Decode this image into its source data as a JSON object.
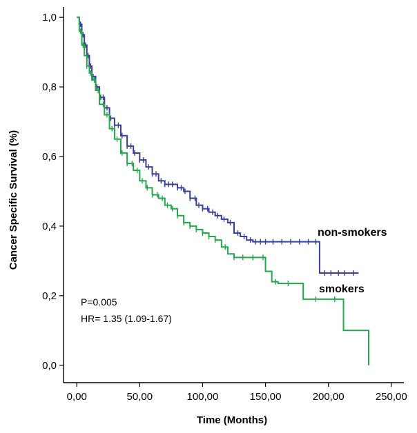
{
  "chart_data": {
    "type": "line",
    "step": true,
    "xlabel": "Time (Months)",
    "ylabel": "Cancer Specific Survival (%)",
    "xlim": [
      -10,
      260
    ],
    "ylim": [
      -0.05,
      1.03
    ],
    "xticks": [
      0,
      50,
      100,
      150,
      200,
      250
    ],
    "xtick_labels": [
      "0,00",
      "50,00",
      "100,00",
      "150,00",
      "200,00",
      "250,00"
    ],
    "yticks": [
      0,
      0.2,
      0.4,
      0.6,
      0.8,
      1.0
    ],
    "ytick_labels": [
      "0,0",
      "0,2",
      "0,4",
      "0,6",
      "0,8",
      "1,0"
    ],
    "annotations": [
      "P=0.005",
      "HR= 1.35 (1.09-1.67)"
    ],
    "series": [
      {
        "name": "non-smokers",
        "color": "#3a3f9a",
        "x": [
          0,
          2,
          4,
          6,
          8,
          10,
          12,
          15,
          18,
          22,
          26,
          30,
          35,
          40,
          45,
          50,
          55,
          60,
          65,
          70,
          75,
          80,
          85,
          90,
          95,
          100,
          105,
          110,
          115,
          120,
          125,
          130,
          135,
          140,
          150,
          160,
          170,
          180,
          190,
          193,
          200,
          210,
          224
        ],
        "y": [
          1.0,
          0.98,
          0.95,
          0.92,
          0.89,
          0.86,
          0.83,
          0.8,
          0.77,
          0.74,
          0.71,
          0.69,
          0.66,
          0.63,
          0.61,
          0.59,
          0.57,
          0.55,
          0.53,
          0.52,
          0.52,
          0.51,
          0.5,
          0.48,
          0.46,
          0.45,
          0.44,
          0.43,
          0.42,
          0.41,
          0.38,
          0.37,
          0.36,
          0.355,
          0.355,
          0.355,
          0.355,
          0.355,
          0.355,
          0.265,
          0.265,
          0.265,
          0.265
        ],
        "censor_x": [
          3,
          5,
          7,
          9,
          11,
          13,
          16,
          19,
          21,
          24,
          27,
          30,
          33,
          36,
          40,
          43,
          46,
          50,
          53,
          57,
          60,
          63,
          67,
          70,
          73,
          76,
          80,
          83,
          86,
          90,
          94,
          97,
          100,
          104,
          108,
          112,
          117,
          122,
          128,
          133,
          138,
          142,
          146,
          150,
          156,
          163,
          170,
          177,
          184,
          190,
          197,
          202,
          208,
          213,
          220
        ]
      },
      {
        "name": "smokers",
        "color": "#22a84a",
        "x": [
          0,
          2,
          4,
          6,
          8,
          10,
          12,
          15,
          18,
          22,
          26,
          30,
          35,
          40,
          45,
          50,
          55,
          60,
          65,
          70,
          75,
          80,
          85,
          90,
          95,
          100,
          105,
          110,
          115,
          120,
          125,
          130,
          135,
          140,
          150,
          155,
          160,
          170,
          180,
          190,
          200,
          212,
          232
        ],
        "y": [
          1.0,
          0.96,
          0.92,
          0.89,
          0.86,
          0.84,
          0.82,
          0.79,
          0.75,
          0.72,
          0.68,
          0.65,
          0.61,
          0.58,
          0.56,
          0.53,
          0.51,
          0.49,
          0.48,
          0.46,
          0.45,
          0.43,
          0.41,
          0.4,
          0.39,
          0.38,
          0.37,
          0.36,
          0.34,
          0.32,
          0.31,
          0.31,
          0.31,
          0.31,
          0.27,
          0.24,
          0.235,
          0.235,
          0.19,
          0.19,
          0.19,
          0.1,
          0.0
        ],
        "censor_x": [
          3,
          5,
          8,
          11,
          14,
          17,
          21,
          24,
          28,
          32,
          36,
          40,
          44,
          48,
          52,
          56,
          60,
          64,
          68,
          72,
          76,
          80,
          85,
          90,
          95,
          100,
          105,
          110,
          118,
          125,
          132,
          140,
          148,
          158,
          168,
          190,
          205
        ]
      }
    ]
  }
}
